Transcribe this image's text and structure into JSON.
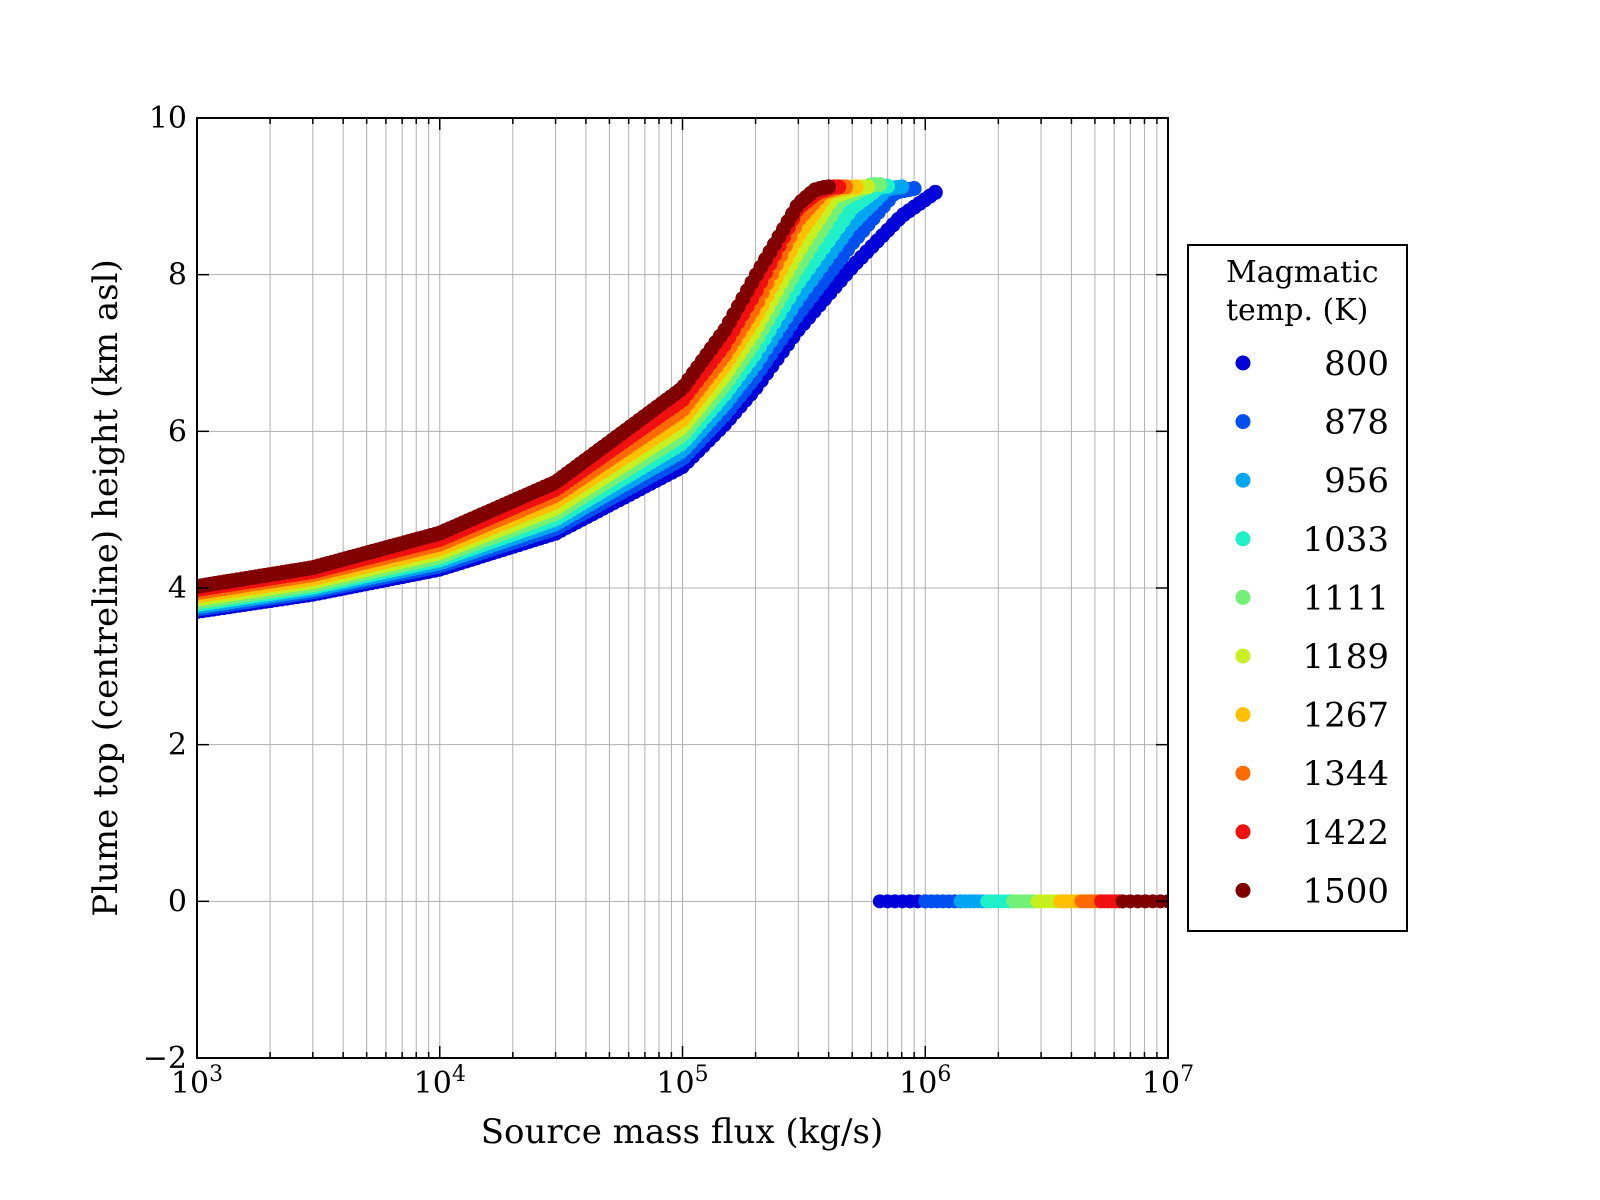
{
  "chart_data": {
    "type": "scatter",
    "title": "",
    "xlabel": "Source mass flux (kg/s)",
    "ylabel": "Plume top (centreline) height (km asl)",
    "xscale": "log",
    "xlim": [
      1000,
      10000000
    ],
    "ylim": [
      -2,
      10
    ],
    "grid": true,
    "x_ticks": [
      {
        "value": 1000,
        "base": "10",
        "exp": "3"
      },
      {
        "value": 10000,
        "base": "10",
        "exp": "4"
      },
      {
        "value": 100000,
        "base": "10",
        "exp": "5"
      },
      {
        "value": 1000000,
        "base": "10",
        "exp": "6"
      },
      {
        "value": 10000000,
        "base": "10",
        "exp": "7"
      }
    ],
    "y_ticks": [
      {
        "value": -2,
        "label": "−2"
      },
      {
        "value": 0,
        "label": "0"
      },
      {
        "value": 2,
        "label": "2"
      },
      {
        "value": 4,
        "label": "4"
      },
      {
        "value": 6,
        "label": "6"
      },
      {
        "value": 8,
        "label": "8"
      },
      {
        "value": 10,
        "label": "10"
      }
    ],
    "legend": {
      "title_lines": [
        "Magmatic",
        "temp. (K)"
      ],
      "placement": "outside-right"
    },
    "series": [
      {
        "name": "800",
        "color": "#0000d8",
        "points": [
          [
            1000,
            3.7
          ],
          [
            3000,
            3.92
          ],
          [
            10000,
            4.24
          ],
          [
            30000,
            4.7
          ],
          [
            100000,
            5.55
          ],
          [
            150000,
            6.1
          ],
          [
            200000,
            6.55
          ],
          [
            300000,
            7.3
          ],
          [
            500000,
            8.1
          ],
          [
            800000,
            8.75
          ],
          [
            1100000,
            9.05
          ]
        ],
        "collapsed_x": [
          650000,
          1000000
        ]
      },
      {
        "name": "878",
        "color": "#0050f0",
        "points": [
          [
            1000,
            3.73
          ],
          [
            3000,
            3.95
          ],
          [
            10000,
            4.28
          ],
          [
            30000,
            4.76
          ],
          [
            100000,
            5.65
          ],
          [
            150000,
            6.22
          ],
          [
            200000,
            6.7
          ],
          [
            300000,
            7.5
          ],
          [
            500000,
            8.4
          ],
          [
            750000,
            9.05
          ],
          [
            900000,
            9.1
          ]
        ],
        "collapsed_x": [
          1000000,
          1400000
        ]
      },
      {
        "name": "956",
        "color": "#00a6f0",
        "points": [
          [
            1000,
            3.76
          ],
          [
            3000,
            3.98
          ],
          [
            10000,
            4.32
          ],
          [
            30000,
            4.82
          ],
          [
            100000,
            5.75
          ],
          [
            150000,
            6.35
          ],
          [
            200000,
            6.85
          ],
          [
            300000,
            7.7
          ],
          [
            500000,
            8.65
          ],
          [
            700000,
            9.1
          ],
          [
            800000,
            9.12
          ]
        ],
        "collapsed_x": [
          1400000,
          1800000
        ]
      },
      {
        "name": "1033",
        "color": "#20f0c8",
        "points": [
          [
            1000,
            3.79
          ],
          [
            3000,
            4.01
          ],
          [
            10000,
            4.36
          ],
          [
            30000,
            4.88
          ],
          [
            100000,
            5.85
          ],
          [
            150000,
            6.48
          ],
          [
            200000,
            7.0
          ],
          [
            300000,
            7.9
          ],
          [
            500000,
            8.85
          ],
          [
            650000,
            9.12
          ],
          [
            700000,
            9.13
          ]
        ],
        "collapsed_x": [
          1800000,
          2300000
        ]
      },
      {
        "name": "1111",
        "color": "#72f078",
        "points": [
          [
            1000,
            3.82
          ],
          [
            3000,
            4.04
          ],
          [
            10000,
            4.4
          ],
          [
            30000,
            4.95
          ],
          [
            100000,
            5.95
          ],
          [
            150000,
            6.6
          ],
          [
            200000,
            7.15
          ],
          [
            300000,
            8.1
          ],
          [
            450000,
            8.95
          ],
          [
            600000,
            9.15
          ],
          [
            650000,
            9.15
          ]
        ],
        "collapsed_x": [
          2300000,
          2900000
        ]
      },
      {
        "name": "1189",
        "color": "#c8f020",
        "points": [
          [
            1000,
            3.86
          ],
          [
            3000,
            4.08
          ],
          [
            10000,
            4.45
          ],
          [
            30000,
            5.02
          ],
          [
            100000,
            6.05
          ],
          [
            150000,
            6.72
          ],
          [
            200000,
            7.3
          ],
          [
            300000,
            8.3
          ],
          [
            420000,
            9.0
          ],
          [
            550000,
            9.12
          ],
          [
            580000,
            9.12
          ]
        ],
        "collapsed_x": [
          2900000,
          3600000
        ]
      },
      {
        "name": "1267",
        "color": "#ffc000",
        "points": [
          [
            1000,
            3.9
          ],
          [
            3000,
            4.12
          ],
          [
            10000,
            4.5
          ],
          [
            30000,
            5.1
          ],
          [
            100000,
            6.15
          ],
          [
            150000,
            6.85
          ],
          [
            200000,
            7.45
          ],
          [
            300000,
            8.5
          ],
          [
            400000,
            9.05
          ],
          [
            500000,
            9.12
          ],
          [
            520000,
            9.12
          ]
        ],
        "collapsed_x": [
          3600000,
          4400000
        ]
      },
      {
        "name": "1344",
        "color": "#ff6a00",
        "points": [
          [
            1000,
            3.94
          ],
          [
            3000,
            4.17
          ],
          [
            10000,
            4.56
          ],
          [
            30000,
            5.18
          ],
          [
            100000,
            6.27
          ],
          [
            150000,
            6.98
          ],
          [
            200000,
            7.6
          ],
          [
            300000,
            8.7
          ],
          [
            380000,
            9.05
          ],
          [
            450000,
            9.12
          ],
          [
            470000,
            9.12
          ]
        ],
        "collapsed_x": [
          4400000,
          5300000
        ]
      },
      {
        "name": "1422",
        "color": "#f01010",
        "points": [
          [
            1000,
            3.98
          ],
          [
            3000,
            4.21
          ],
          [
            10000,
            4.62
          ],
          [
            30000,
            5.26
          ],
          [
            100000,
            6.4
          ],
          [
            150000,
            7.12
          ],
          [
            200000,
            7.78
          ],
          [
            300000,
            8.85
          ],
          [
            360000,
            9.05
          ],
          [
            420000,
            9.12
          ],
          [
            440000,
            9.12
          ]
        ],
        "collapsed_x": [
          5300000,
          6500000
        ]
      },
      {
        "name": "1500",
        "color": "#800000",
        "points": [
          [
            1000,
            4.02
          ],
          [
            3000,
            4.26
          ],
          [
            10000,
            4.7
          ],
          [
            30000,
            5.35
          ],
          [
            100000,
            6.55
          ],
          [
            150000,
            7.3
          ],
          [
            200000,
            7.98
          ],
          [
            300000,
            8.9
          ],
          [
            350000,
            9.08
          ],
          [
            390000,
            9.12
          ],
          [
            400000,
            9.12
          ]
        ],
        "collapsed_x": [
          6500000,
          10000000
        ]
      }
    ]
  }
}
